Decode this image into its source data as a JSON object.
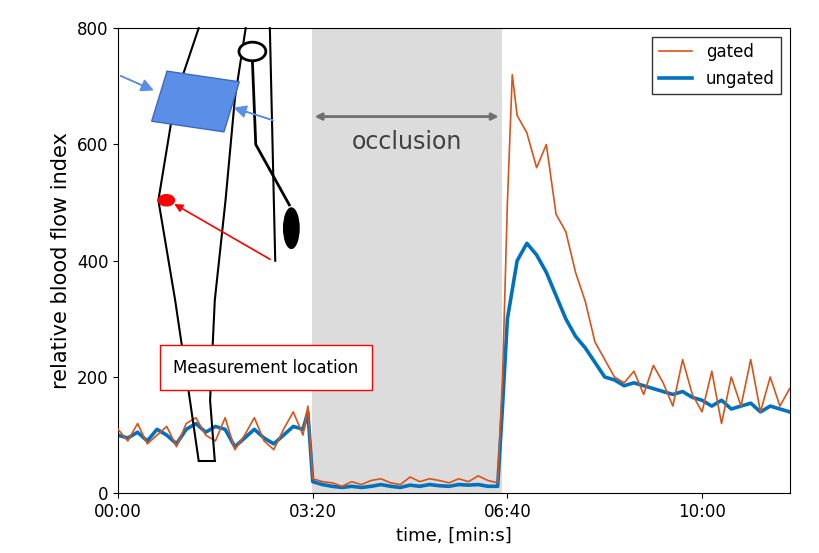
{
  "chart_data": {
    "type": "line",
    "x_label": "time, [min:s]",
    "y_label": "relative blood flow index",
    "x": [
      0,
      10,
      20,
      30,
      40,
      50,
      60,
      70,
      80,
      90,
      100,
      110,
      120,
      130,
      140,
      150,
      160,
      170,
      180,
      190,
      195,
      200,
      210,
      220,
      230,
      240,
      250,
      260,
      270,
      280,
      290,
      300,
      310,
      320,
      330,
      340,
      350,
      360,
      370,
      380,
      390,
      395,
      400,
      405,
      410,
      420,
      430,
      440,
      450,
      460,
      470,
      480,
      490,
      500,
      510,
      520,
      530,
      540,
      550,
      560,
      570,
      580,
      590,
      600,
      610,
      620,
      630,
      640,
      650,
      660,
      670,
      680,
      690
    ],
    "series": [
      {
        "name": "gated",
        "color": "#d95319",
        "values": [
          110,
          90,
          120,
          85,
          100,
          115,
          80,
          120,
          130,
          100,
          90,
          130,
          75,
          100,
          130,
          90,
          75,
          110,
          140,
          100,
          150,
          25,
          20,
          18,
          12,
          20,
          15,
          22,
          25,
          18,
          15,
          28,
          20,
          25,
          22,
          18,
          25,
          20,
          30,
          22,
          18,
          200,
          500,
          720,
          650,
          620,
          560,
          600,
          480,
          450,
          380,
          330,
          260,
          230,
          200,
          190,
          210,
          170,
          220,
          190,
          150,
          230,
          170,
          140,
          210,
          120,
          200,
          150,
          230,
          140,
          200,
          150,
          180
        ]
      },
      {
        "name": "ungated",
        "color": "#0072bd",
        "values": [
          100,
          95,
          105,
          90,
          110,
          100,
          85,
          110,
          120,
          105,
          115,
          110,
          80,
          95,
          110,
          95,
          85,
          100,
          115,
          110,
          140,
          20,
          15,
          12,
          10,
          12,
          10,
          12,
          15,
          12,
          10,
          14,
          12,
          15,
          13,
          12,
          15,
          14,
          15,
          12,
          12,
          150,
          300,
          350,
          400,
          430,
          410,
          380,
          340,
          300,
          270,
          250,
          225,
          200,
          195,
          185,
          190,
          185,
          180,
          175,
          170,
          175,
          165,
          160,
          150,
          160,
          145,
          150,
          155,
          140,
          150,
          145,
          140
        ]
      }
    ],
    "xlim": [
      0,
      690
    ],
    "xticks": [
      {
        "value": 0,
        "label": "00:00"
      },
      {
        "value": 200,
        "label": "03:20"
      },
      {
        "value": 400,
        "label": "06:40"
      },
      {
        "value": 600,
        "label": "10:00"
      }
    ],
    "ylim": [
      0,
      800
    ],
    "yticks": [
      0,
      200,
      400,
      600,
      800
    ],
    "legend": "upper right",
    "grid": false,
    "annotations": {
      "occlusion": {
        "label": "occlusion",
        "start": 199,
        "end": 394
      },
      "measurement": "Measurement location"
    }
  }
}
